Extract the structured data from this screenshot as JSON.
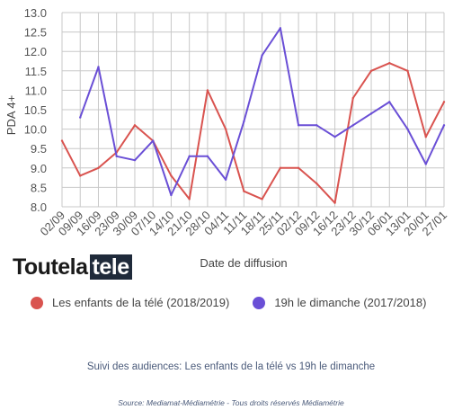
{
  "chart_data": {
    "type": "line",
    "ylabel": "PDA 4+",
    "xlabel": "Date de diffusion",
    "ylim": [
      8.0,
      13.0
    ],
    "yticks": [
      "8.0",
      "8.5",
      "9.0",
      "9.5",
      "10.0",
      "10.5",
      "11.0",
      "11.5",
      "12.0",
      "12.5",
      "13.0"
    ],
    "categories": [
      "02/09",
      "09/09",
      "16/09",
      "23/09",
      "30/09",
      "07/10",
      "14/10",
      "21/10",
      "28/10",
      "04/11",
      "11/11",
      "18/11",
      "25/11",
      "02/12",
      "09/12",
      "16/12",
      "23/12",
      "30/12",
      "06/01",
      "13/01",
      "20/01",
      "27/01"
    ],
    "grid": true,
    "legend_position": "bottom",
    "series": [
      {
        "name": "Les enfants de la télé (2018/2019)",
        "color": "#d9534f",
        "values": [
          9.7,
          8.8,
          9.0,
          9.4,
          10.1,
          9.7,
          8.8,
          8.2,
          11.0,
          10.0,
          8.4,
          8.2,
          9.0,
          9.0,
          8.6,
          8.1,
          10.8,
          11.5,
          11.7,
          11.5,
          9.8,
          10.7
        ]
      },
      {
        "name": "19h le dimanche (2017/2018)",
        "color": "#6a4fd6",
        "values": [
          null,
          10.3,
          11.6,
          9.3,
          9.2,
          9.7,
          8.3,
          9.3,
          9.3,
          8.7,
          10.2,
          11.9,
          12.6,
          10.1,
          10.1,
          9.8,
          10.1,
          10.4,
          10.7,
          10.0,
          9.1,
          10.1
        ]
      }
    ]
  },
  "logo": {
    "part1": "Toutela",
    "part2": "tele"
  },
  "subtitle": "Suivi des audiences: Les enfants de la télé vs 19h le dimanche",
  "source": "Source: Mediamat-Médiamétrie - Tous droits réservés Médiamétrie"
}
